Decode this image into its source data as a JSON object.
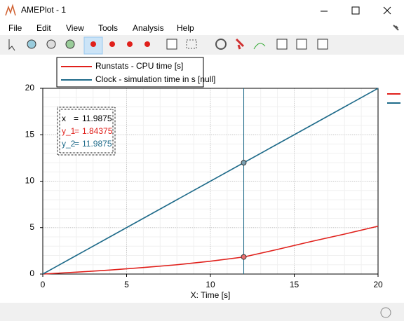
{
  "window": {
    "title": "AMEPlot - 1"
  },
  "menu": {
    "items": [
      "File",
      "Edit",
      "View",
      "Tools",
      "Analysis",
      "Help"
    ]
  },
  "chart_data": {
    "type": "line",
    "x": [
      0,
      2,
      4,
      6,
      8,
      10,
      12,
      14,
      16,
      18,
      20
    ],
    "series": [
      {
        "name": "Runstats - CPU time [s]",
        "color": "#e0201b",
        "values": [
          0,
          0.2,
          0.43,
          0.7,
          1.0,
          1.38,
          1.84,
          2.65,
          3.5,
          4.3,
          5.15
        ]
      },
      {
        "name": "Clock - simulation time in s [null]",
        "color": "#1f6b8a",
        "values": [
          0,
          2,
          4,
          6,
          8,
          10,
          12,
          14,
          16,
          18,
          20
        ]
      }
    ],
    "xlabel": "X: Time [s]",
    "xlim": [
      0,
      20
    ],
    "xticks": [
      0,
      5,
      10,
      15,
      20
    ],
    "ylim": [
      0,
      20
    ],
    "yticks": [
      0,
      5,
      10,
      15,
      20
    ],
    "grid": true,
    "cursor": {
      "x": 11.9875,
      "sep": "=",
      "readout": [
        {
          "name": "x",
          "value": 11.9875
        },
        {
          "name": "y_1",
          "value": 1.84375
        },
        {
          "name": "y_2",
          "value": 11.9875
        }
      ]
    }
  }
}
